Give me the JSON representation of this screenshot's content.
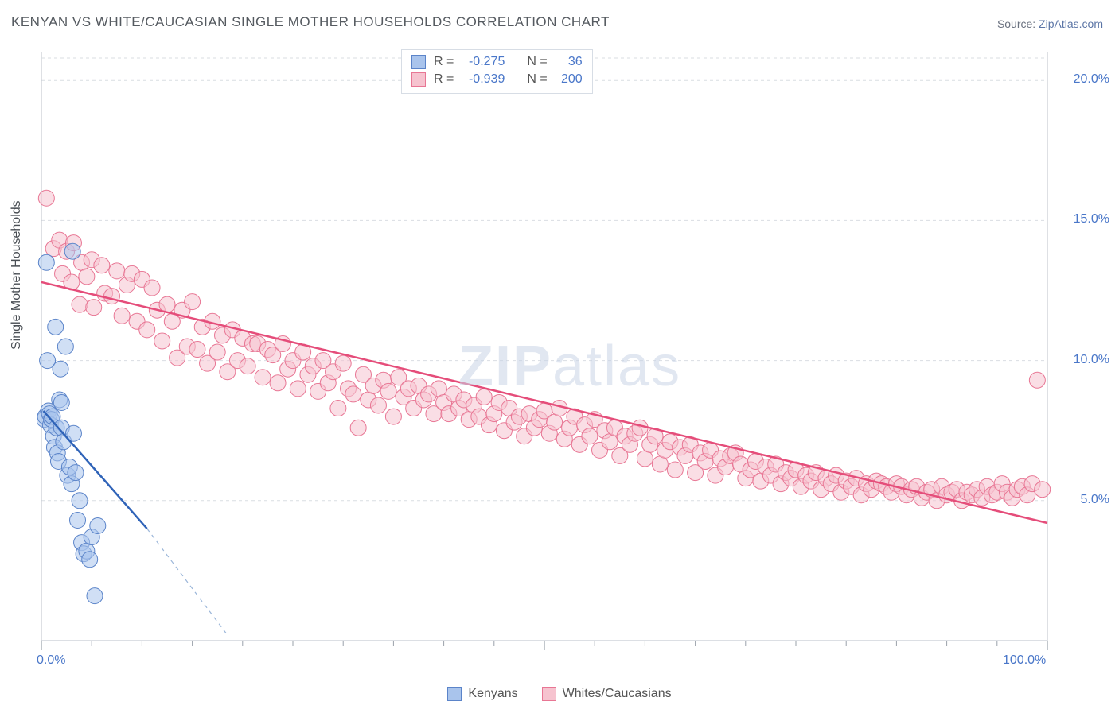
{
  "title": "KENYAN VS WHITE/CAUCASIAN SINGLE MOTHER HOUSEHOLDS CORRELATION CHART",
  "source_label": "Source:",
  "source_name": "ZipAtlas.com",
  "y_axis_label": "Single Mother Households",
  "watermark_a": "ZIP",
  "watermark_b": "atlas",
  "chart": {
    "type": "scatter-correlation",
    "background_color": "#ffffff",
    "grid_color": "#d9dde2",
    "axis_color": "#c7ccd3",
    "tick_color": "#9aa1aa",
    "xlim": [
      0,
      100
    ],
    "ylim": [
      0,
      21
    ],
    "x_ticks_major": [
      0,
      50,
      100
    ],
    "x_ticks_minor_step": 5,
    "y_grid": [
      5,
      10,
      15,
      20
    ],
    "y_tick_labels": {
      "5": "5.0%",
      "10": "10.0%",
      "15": "15.0%",
      "20": "20.0%"
    },
    "x_tick_labels": {
      "0": "0.0%",
      "100": "100.0%"
    },
    "point_radius": 10,
    "point_opacity": 0.55,
    "line_width": 2.5,
    "series": {
      "kenyans": {
        "label": "Kenyans",
        "color_fill": "#a9c4ec",
        "color_stroke": "#5b84c9",
        "trend_color": "#2f63b8",
        "trend_dash_color": "#9bb6d9",
        "R": "-0.275",
        "N": "36",
        "trend_x1": 0.2,
        "trend_y1": 8.2,
        "trend_x2": 10.5,
        "trend_y2": 4.0,
        "trend_ext_x2": 18.5,
        "trend_ext_y2": 0.2,
        "points": [
          [
            0.3,
            7.9
          ],
          [
            0.4,
            8.0
          ],
          [
            0.5,
            13.5
          ],
          [
            0.6,
            10.0
          ],
          [
            0.7,
            8.2
          ],
          [
            0.8,
            8.1
          ],
          [
            0.9,
            7.7
          ],
          [
            1.0,
            7.9
          ],
          [
            1.1,
            8.0
          ],
          [
            1.2,
            7.3
          ],
          [
            1.3,
            6.9
          ],
          [
            1.4,
            11.2
          ],
          [
            1.5,
            7.6
          ],
          [
            1.6,
            6.7
          ],
          [
            1.7,
            6.4
          ],
          [
            1.8,
            8.6
          ],
          [
            1.9,
            9.7
          ],
          [
            2.0,
            7.6
          ],
          [
            2.2,
            7.1
          ],
          [
            2.4,
            10.5
          ],
          [
            2.6,
            5.9
          ],
          [
            2.8,
            6.2
          ],
          [
            3.0,
            5.6
          ],
          [
            3.2,
            7.4
          ],
          [
            3.4,
            6.0
          ],
          [
            3.6,
            4.3
          ],
          [
            3.8,
            5.0
          ],
          [
            4.0,
            3.5
          ],
          [
            4.2,
            3.1
          ],
          [
            4.5,
            3.2
          ],
          [
            4.8,
            2.9
          ],
          [
            5.0,
            3.7
          ],
          [
            5.3,
            1.6
          ],
          [
            5.6,
            4.1
          ],
          [
            3.1,
            13.9
          ],
          [
            2.0,
            8.5
          ]
        ]
      },
      "whites": {
        "label": "Whites/Caucasians",
        "color_fill": "#f6c3cf",
        "color_stroke": "#e87694",
        "trend_color": "#e54d7a",
        "R": "-0.939",
        "N": "200",
        "trend_x1": 0,
        "trend_y1": 12.8,
        "trend_x2": 100,
        "trend_y2": 4.2,
        "points": [
          [
            0.5,
            15.8
          ],
          [
            1.2,
            14.0
          ],
          [
            1.8,
            14.3
          ],
          [
            2.1,
            13.1
          ],
          [
            2.5,
            13.9
          ],
          [
            3.0,
            12.8
          ],
          [
            3.2,
            14.2
          ],
          [
            3.8,
            12.0
          ],
          [
            4.0,
            13.5
          ],
          [
            4.5,
            13.0
          ],
          [
            5.0,
            13.6
          ],
          [
            5.2,
            11.9
          ],
          [
            6.0,
            13.4
          ],
          [
            6.3,
            12.4
          ],
          [
            7.0,
            12.3
          ],
          [
            7.5,
            13.2
          ],
          [
            8.0,
            11.6
          ],
          [
            8.5,
            12.7
          ],
          [
            9.0,
            13.1
          ],
          [
            9.5,
            11.4
          ],
          [
            10.0,
            12.9
          ],
          [
            10.5,
            11.1
          ],
          [
            11.0,
            12.6
          ],
          [
            11.5,
            11.8
          ],
          [
            12.0,
            10.7
          ],
          [
            12.5,
            12.0
          ],
          [
            13.0,
            11.4
          ],
          [
            13.5,
            10.1
          ],
          [
            14.0,
            11.8
          ],
          [
            14.5,
            10.5
          ],
          [
            15.0,
            12.1
          ],
          [
            15.5,
            10.4
          ],
          [
            16.0,
            11.2
          ],
          [
            16.5,
            9.9
          ],
          [
            17.0,
            11.4
          ],
          [
            17.5,
            10.3
          ],
          [
            18.0,
            10.9
          ],
          [
            18.5,
            9.6
          ],
          [
            19.0,
            11.1
          ],
          [
            19.5,
            10.0
          ],
          [
            20.0,
            10.8
          ],
          [
            20.5,
            9.8
          ],
          [
            21.0,
            10.6
          ],
          [
            21.5,
            10.6
          ],
          [
            22.0,
            9.4
          ],
          [
            22.5,
            10.4
          ],
          [
            23.0,
            10.2
          ],
          [
            23.5,
            9.2
          ],
          [
            24.0,
            10.6
          ],
          [
            24.5,
            9.7
          ],
          [
            25.0,
            10.0
          ],
          [
            25.5,
            9.0
          ],
          [
            26.0,
            10.3
          ],
          [
            26.5,
            9.5
          ],
          [
            27.0,
            9.8
          ],
          [
            27.5,
            8.9
          ],
          [
            28.0,
            10.0
          ],
          [
            28.5,
            9.2
          ],
          [
            29.0,
            9.6
          ],
          [
            29.5,
            8.3
          ],
          [
            30.0,
            9.9
          ],
          [
            30.5,
            9.0
          ],
          [
            31.0,
            8.8
          ],
          [
            31.5,
            7.6
          ],
          [
            32.0,
            9.5
          ],
          [
            32.5,
            8.6
          ],
          [
            33.0,
            9.1
          ],
          [
            33.5,
            8.4
          ],
          [
            34.0,
            9.3
          ],
          [
            34.5,
            8.9
          ],
          [
            35.0,
            8.0
          ],
          [
            35.5,
            9.4
          ],
          [
            36.0,
            8.7
          ],
          [
            36.5,
            9.0
          ],
          [
            37.0,
            8.3
          ],
          [
            37.5,
            9.1
          ],
          [
            38.0,
            8.6
          ],
          [
            38.5,
            8.8
          ],
          [
            39.0,
            8.1
          ],
          [
            39.5,
            9.0
          ],
          [
            40.0,
            8.5
          ],
          [
            40.5,
            8.1
          ],
          [
            41.0,
            8.8
          ],
          [
            41.5,
            8.3
          ],
          [
            42.0,
            8.6
          ],
          [
            42.5,
            7.9
          ],
          [
            43.0,
            8.4
          ],
          [
            43.5,
            8.0
          ],
          [
            44.0,
            8.7
          ],
          [
            44.5,
            7.7
          ],
          [
            45.0,
            8.1
          ],
          [
            45.5,
            8.5
          ],
          [
            46.0,
            7.5
          ],
          [
            46.5,
            8.3
          ],
          [
            47.0,
            7.8
          ],
          [
            47.5,
            8.0
          ],
          [
            48.0,
            7.3
          ],
          [
            48.5,
            8.1
          ],
          [
            49.0,
            7.6
          ],
          [
            49.5,
            7.9
          ],
          [
            50.0,
            8.2
          ],
          [
            50.5,
            7.4
          ],
          [
            51.0,
            7.8
          ],
          [
            51.5,
            8.3
          ],
          [
            52.0,
            7.2
          ],
          [
            52.5,
            7.6
          ],
          [
            53.0,
            8.0
          ],
          [
            53.5,
            7.0
          ],
          [
            54.0,
            7.7
          ],
          [
            54.5,
            7.3
          ],
          [
            55.0,
            7.9
          ],
          [
            55.5,
            6.8
          ],
          [
            56.0,
            7.5
          ],
          [
            56.5,
            7.1
          ],
          [
            57.0,
            7.6
          ],
          [
            57.5,
            6.6
          ],
          [
            58.0,
            7.3
          ],
          [
            58.5,
            7.0
          ],
          [
            59.0,
            7.4
          ],
          [
            59.5,
            7.6
          ],
          [
            60.0,
            6.5
          ],
          [
            60.5,
            7.0
          ],
          [
            61.0,
            7.3
          ],
          [
            61.5,
            6.3
          ],
          [
            62.0,
            6.8
          ],
          [
            62.5,
            7.1
          ],
          [
            63.0,
            6.1
          ],
          [
            63.5,
            6.9
          ],
          [
            64.0,
            6.6
          ],
          [
            64.5,
            7.0
          ],
          [
            65.0,
            6.0
          ],
          [
            65.5,
            6.7
          ],
          [
            66.0,
            6.4
          ],
          [
            66.5,
            6.8
          ],
          [
            67.0,
            5.9
          ],
          [
            67.5,
            6.5
          ],
          [
            68.0,
            6.2
          ],
          [
            68.5,
            6.6
          ],
          [
            69.0,
            6.7
          ],
          [
            69.5,
            6.3
          ],
          [
            70.0,
            5.8
          ],
          [
            70.5,
            6.1
          ],
          [
            71.0,
            6.4
          ],
          [
            71.5,
            5.7
          ],
          [
            72.0,
            6.2
          ],
          [
            72.5,
            5.9
          ],
          [
            73.0,
            6.3
          ],
          [
            73.5,
            5.6
          ],
          [
            74.0,
            6.0
          ],
          [
            74.5,
            5.8
          ],
          [
            75.0,
            6.1
          ],
          [
            75.5,
            5.5
          ],
          [
            76.0,
            5.9
          ],
          [
            76.5,
            5.7
          ],
          [
            77.0,
            6.0
          ],
          [
            77.5,
            5.4
          ],
          [
            78.0,
            5.8
          ],
          [
            78.5,
            5.6
          ],
          [
            79.0,
            5.9
          ],
          [
            79.5,
            5.3
          ],
          [
            80.0,
            5.7
          ],
          [
            80.5,
            5.5
          ],
          [
            81.0,
            5.8
          ],
          [
            81.5,
            5.2
          ],
          [
            82.0,
            5.6
          ],
          [
            82.5,
            5.4
          ],
          [
            83.0,
            5.7
          ],
          [
            83.5,
            5.6
          ],
          [
            84.0,
            5.5
          ],
          [
            84.5,
            5.3
          ],
          [
            85.0,
            5.6
          ],
          [
            85.5,
            5.5
          ],
          [
            86.0,
            5.2
          ],
          [
            86.5,
            5.4
          ],
          [
            87.0,
            5.5
          ],
          [
            87.5,
            5.1
          ],
          [
            88.0,
            5.3
          ],
          [
            88.5,
            5.4
          ],
          [
            89.0,
            5.0
          ],
          [
            89.5,
            5.5
          ],
          [
            90.0,
            5.2
          ],
          [
            90.5,
            5.3
          ],
          [
            91.0,
            5.4
          ],
          [
            91.5,
            5.0
          ],
          [
            92.0,
            5.3
          ],
          [
            92.5,
            5.2
          ],
          [
            93.0,
            5.4
          ],
          [
            93.5,
            5.1
          ],
          [
            94.0,
            5.5
          ],
          [
            94.5,
            5.2
          ],
          [
            95.0,
            5.3
          ],
          [
            95.5,
            5.6
          ],
          [
            96.0,
            5.3
          ],
          [
            96.5,
            5.1
          ],
          [
            97.0,
            5.4
          ],
          [
            97.5,
            5.5
          ],
          [
            98.0,
            5.2
          ],
          [
            98.5,
            5.6
          ],
          [
            99.0,
            9.3
          ],
          [
            99.5,
            5.4
          ]
        ]
      }
    }
  }
}
